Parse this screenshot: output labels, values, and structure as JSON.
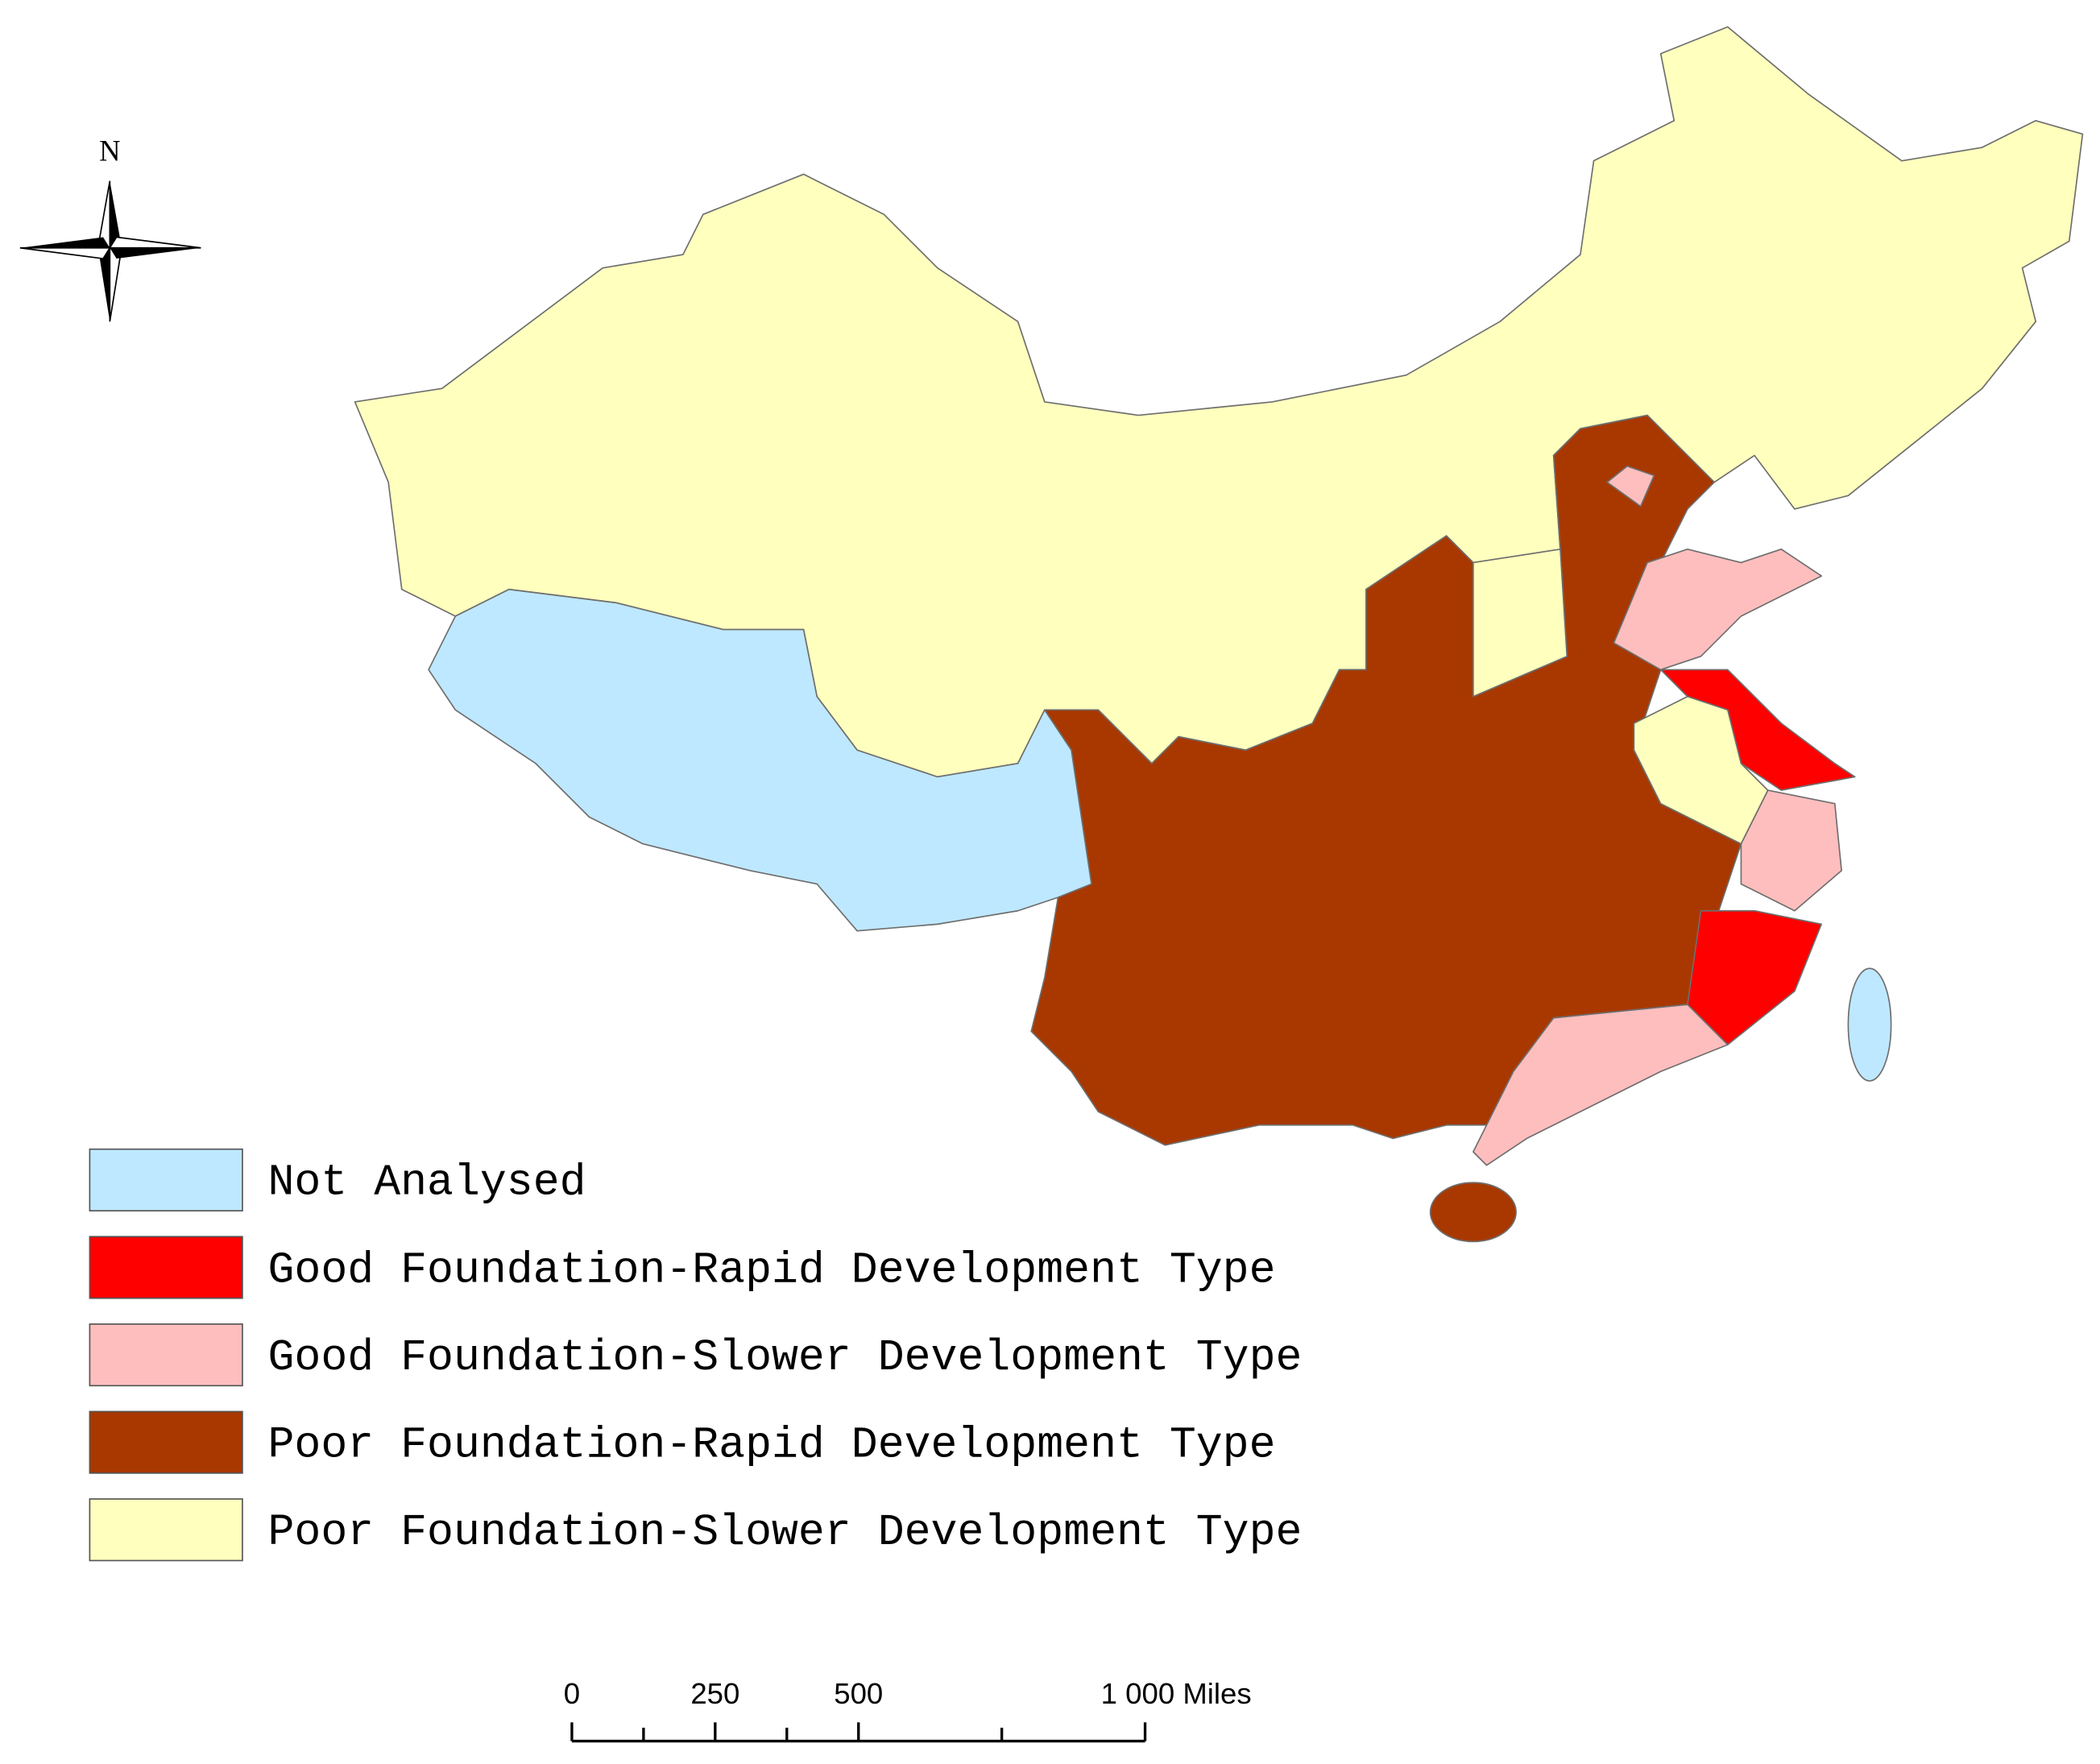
{
  "north_arrow": {
    "label": "N"
  },
  "legend": [
    {
      "label": "Not Analysed",
      "color": "#bee8ff"
    },
    {
      "label": "Good Foundation-Rapid Development Type",
      "color": "#ff0000"
    },
    {
      "label": "Good Foundation-Slower Development Type",
      "color": "#ffbebe"
    },
    {
      "label": "Poor Foundation-Rapid Development Type",
      "color": "#a83800"
    },
    {
      "label": "Poor Foundation-Slower Development Type",
      "color": "#ffffbe"
    }
  ],
  "scale_bar": {
    "max": 1000,
    "ticks": [
      {
        "value": 0,
        "label": "0"
      },
      {
        "value": 250,
        "label": "250"
      },
      {
        "value": 500,
        "label": "500"
      },
      {
        "value": 1000,
        "label": "1 000 Miles"
      }
    ],
    "minor_ticks": [
      125,
      375,
      750
    ]
  }
}
